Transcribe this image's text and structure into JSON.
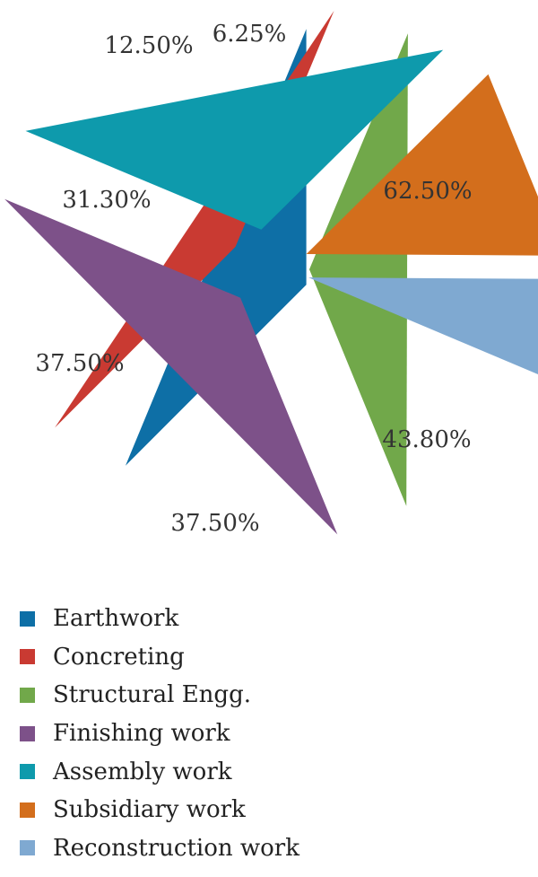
{
  "chart_data": {
    "type": "pie",
    "title": "",
    "series": [
      {
        "name": "Earthwork",
        "value": 62.5,
        "label": "62.50%",
        "color": "#0e6fa6"
      },
      {
        "name": "Concreting",
        "value": 43.8,
        "label": "43.80%",
        "color": "#c93a32"
      },
      {
        "name": "Structural Engg.",
        "value": 37.5,
        "label": "37.50%",
        "color": "#71a84a"
      },
      {
        "name": "Finishing work",
        "value": 37.5,
        "label": "37.50%",
        "color": "#7d5189"
      },
      {
        "name": "Assembly work",
        "value": 31.3,
        "label": "31.30%",
        "color": "#0e9aac"
      },
      {
        "name": "Subsidiary work",
        "value": 12.5,
        "label": "12.50%",
        "color": "#d36e1c"
      },
      {
        "name": "Reconstruction work",
        "value": 6.25,
        "label": "6.25%",
        "color": "#7fa9d1"
      }
    ],
    "legend_position": "bottom"
  }
}
